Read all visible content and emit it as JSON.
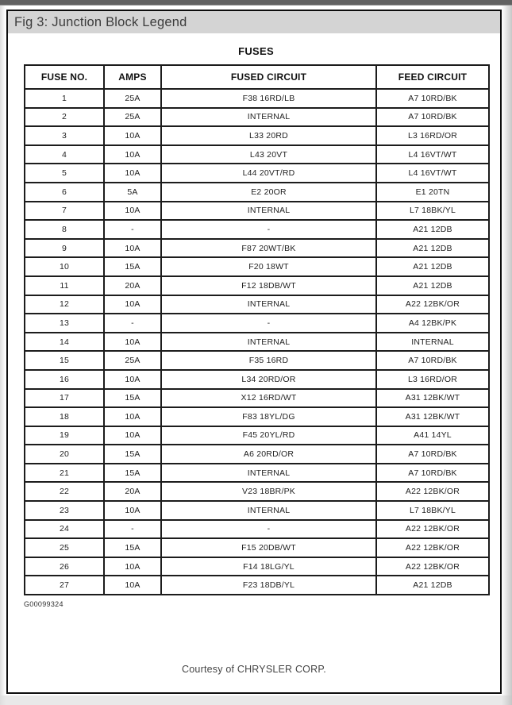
{
  "page": {
    "title": "Fig 3: Junction Block Legend",
    "figure_code": "G00099324",
    "courtesy": "Courtesy of CHRYSLER CORP."
  },
  "table": {
    "title": "FUSES",
    "columns": [
      "FUSE NO.",
      "AMPS",
      "FUSED CIRCUIT",
      "FEED CIRCUIT"
    ],
    "rows": [
      [
        "1",
        "25A",
        "F38 16RD/LB",
        "A7 10RD/BK"
      ],
      [
        "2",
        "25A",
        "INTERNAL",
        "A7 10RD/BK"
      ],
      [
        "3",
        "10A",
        "L33 20RD",
        "L3 16RD/OR"
      ],
      [
        "4",
        "10A",
        "L43 20VT",
        "L4 16VT/WT"
      ],
      [
        "5",
        "10A",
        "L44 20VT/RD",
        "L4 16VT/WT"
      ],
      [
        "6",
        "5A",
        "E2 20OR",
        "E1 20TN"
      ],
      [
        "7",
        "10A",
        "INTERNAL",
        "L7 18BK/YL"
      ],
      [
        "8",
        "-",
        "-",
        "A21 12DB"
      ],
      [
        "9",
        "10A",
        "F87 20WT/BK",
        "A21 12DB"
      ],
      [
        "10",
        "15A",
        "F20 18WT",
        "A21 12DB"
      ],
      [
        "11",
        "20A",
        "F12 18DB/WT",
        "A21 12DB"
      ],
      [
        "12",
        "10A",
        "INTERNAL",
        "A22 12BK/OR"
      ],
      [
        "13",
        "-",
        "-",
        "A4 12BK/PK"
      ],
      [
        "14",
        "10A",
        "INTERNAL",
        "INTERNAL"
      ],
      [
        "15",
        "25A",
        "F35 16RD",
        "A7 10RD/BK"
      ],
      [
        "16",
        "10A",
        "L34 20RD/OR",
        "L3 16RD/OR"
      ],
      [
        "17",
        "15A",
        "X12 16RD/WT",
        "A31 12BK/WT"
      ],
      [
        "18",
        "10A",
        "F83 18YL/DG",
        "A31 12BK/WT"
      ],
      [
        "19",
        "10A",
        "F45 20YL/RD",
        "A41 14YL"
      ],
      [
        "20",
        "15A",
        "A6 20RD/OR",
        "A7 10RD/BK"
      ],
      [
        "21",
        "15A",
        "INTERNAL",
        "A7 10RD/BK"
      ],
      [
        "22",
        "20A",
        "V23 18BR/PK",
        "A22 12BK/OR"
      ],
      [
        "23",
        "10A",
        "INTERNAL",
        "L7 18BK/YL"
      ],
      [
        "24",
        "-",
        "-",
        "A22 12BK/OR"
      ],
      [
        "25",
        "15A",
        "F15 20DB/WT",
        "A22 12BK/OR"
      ],
      [
        "26",
        "10A",
        "F14 18LG/YL",
        "A22 12BK/OR"
      ],
      [
        "27",
        "10A",
        "F23 18DB/YL",
        "A21 12DB"
      ]
    ]
  },
  "colors": {
    "top_bar": "#616161",
    "title_bar_bg": "#d4d4d4",
    "title_text": "#3c3c3c",
    "table_border": "#1c1c1c",
    "cell_text": "#1f1f1f",
    "courtesy_text": "#454545"
  }
}
